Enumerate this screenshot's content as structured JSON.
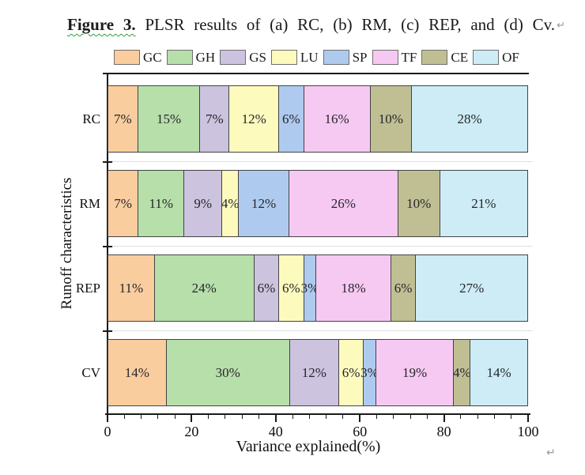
{
  "figure": {
    "caption_bold": "Figure 3.",
    "caption_rest": " PLSR results of (a) RC, (b) RM, (c) REP, and (d) Cv.",
    "return_mark": "↵"
  },
  "chart_data": {
    "type": "bar",
    "orientation": "horizontal-stacked",
    "title": "Figure 3. PLSR results of (a) RC, (b) RM, (c) REP, and (d) Cv.",
    "categories": [
      "RC",
      "RM",
      "REP",
      "CV"
    ],
    "series": [
      {
        "name": "GC",
        "color": "#FACD9E",
        "values": [
          7,
          7,
          11,
          14
        ]
      },
      {
        "name": "GH",
        "color": "#B7DFAA",
        "values": [
          15,
          11,
          24,
          30
        ]
      },
      {
        "name": "GS",
        "color": "#CCC3DF",
        "values": [
          7,
          9,
          6,
          12
        ]
      },
      {
        "name": "LU",
        "color": "#FDFABE",
        "values": [
          12,
          4,
          6,
          6
        ]
      },
      {
        "name": "SP",
        "color": "#AECBEF",
        "values": [
          6,
          12,
          3,
          3
        ]
      },
      {
        "name": "TF",
        "color": "#F6C9F2",
        "values": [
          16,
          26,
          18,
          19
        ]
      },
      {
        "name": "CE",
        "color": "#C0BF93",
        "values": [
          10,
          10,
          6,
          4
        ]
      },
      {
        "name": "OF",
        "color": "#CDECF6",
        "values": [
          28,
          21,
          27,
          14
        ]
      }
    ],
    "value_label_format": "{v}%",
    "xlabel": "Variance explained(%)",
    "ylabel": "Runoff characteristics",
    "xlim": [
      0,
      100
    ],
    "xticks": [
      0,
      20,
      40,
      60,
      80,
      100
    ],
    "minor_tick_step": 4,
    "grid": "dotted separators between category bands",
    "legend_position": "top"
  }
}
